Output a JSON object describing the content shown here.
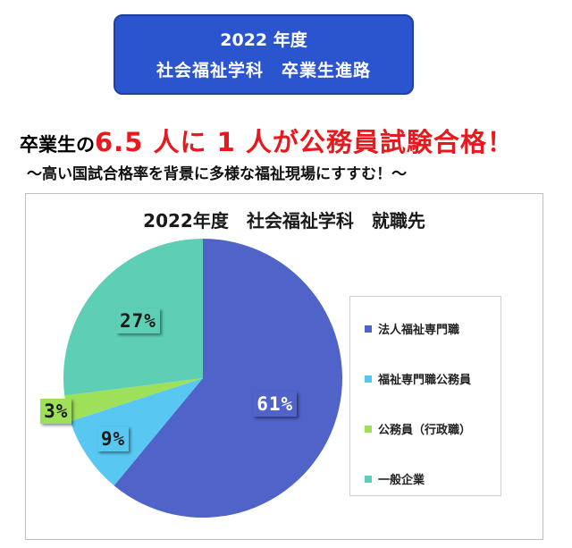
{
  "banner": {
    "line1": "2022 年度",
    "line2": "社会福祉学科　卒業生進路"
  },
  "headline": {
    "prefix": "卒業生の",
    "highlight": "6.5 人に 1 人が公務員試験合格！"
  },
  "subline": "～高い国試合格率を背景に多様な福祉現場にすすむ！～",
  "chart_data": {
    "type": "pie",
    "title": "2022年度　社会福祉学科　就職先",
    "categories": [
      "法人福祉専門職",
      "福祉専門職公務員",
      "公務員（行政職）",
      "一般企業"
    ],
    "values": [
      61,
      9,
      3,
      27
    ],
    "labels": [
      "61%",
      "9%",
      "3%",
      "27%"
    ],
    "colors": [
      "#4f63c9",
      "#58c8f2",
      "#9fe05a",
      "#5ecfb5"
    ],
    "legend_position": "right"
  }
}
